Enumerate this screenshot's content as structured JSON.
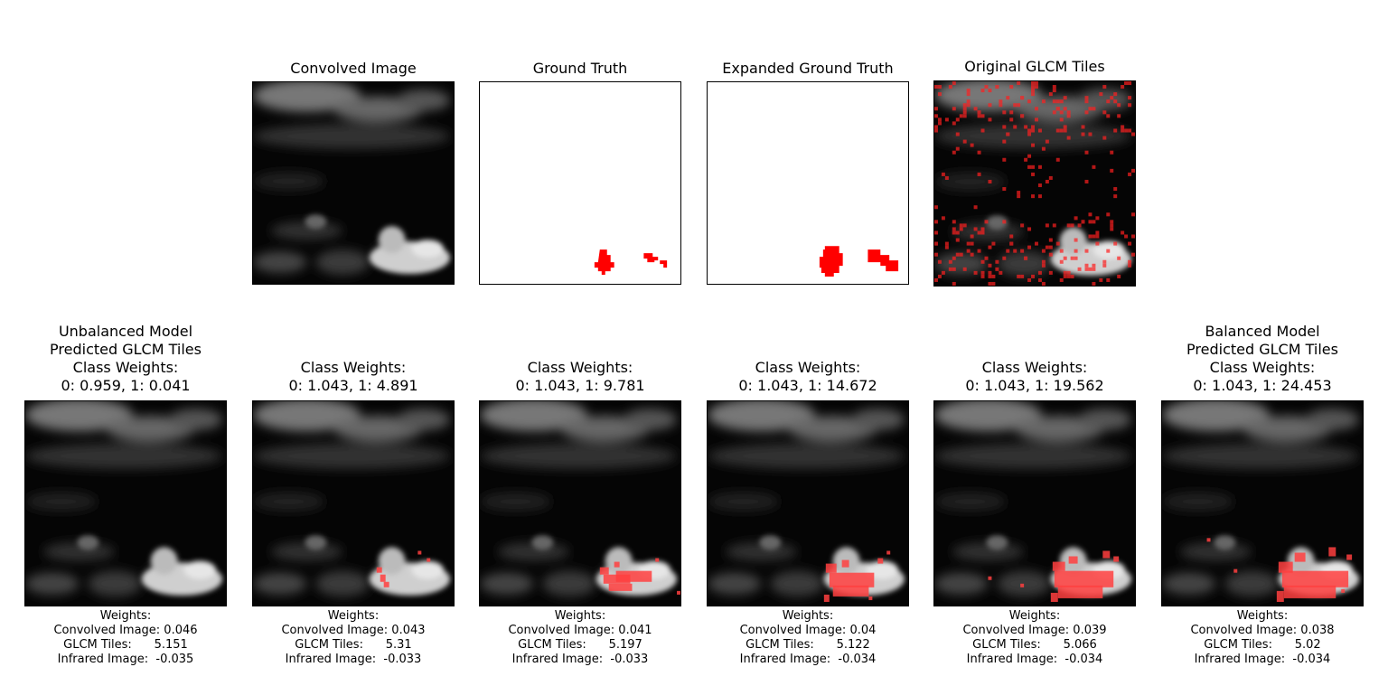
{
  "top_row": [
    {
      "id": "convolved",
      "title": "Convolved Image"
    },
    {
      "id": "gt",
      "title": "Ground Truth"
    },
    {
      "id": "egt",
      "title": "Expanded Ground Truth"
    },
    {
      "id": "glcm",
      "title": "Original GLCM Tiles"
    }
  ],
  "bottom_row": [
    {
      "title": "Unbalanced Model\nPredicted GLCM Tiles\nClass Weights:\n0: 0.959, 1: 0.041",
      "caption": "Weights:\nConvolved Image: 0.046\nGLCM Tiles:      5.151\nInfrared Image:  -0.035"
    },
    {
      "title": "Class Weights:\n0: 1.043, 1: 4.891",
      "caption": "Weights:\nConvolved Image: 0.043\nGLCM Tiles:      5.31\nInfrared Image:  -0.033"
    },
    {
      "title": "Class Weights:\n0: 1.043, 1: 9.781",
      "caption": "Weights:\nConvolved Image: 0.041\nGLCM Tiles:      5.197\nInfrared Image:  -0.033"
    },
    {
      "title": "Class Weights:\n0: 1.043, 1: 14.672",
      "caption": "Weights:\nConvolved Image: 0.04\nGLCM Tiles:      5.122\nInfrared Image:  -0.034"
    },
    {
      "title": "Class Weights:\n0: 1.043, 1: 19.562",
      "caption": "Weights:\nConvolved Image: 0.039\nGLCM Tiles:      5.066\nInfrared Image:  -0.034"
    },
    {
      "title": "Balanced Model\nPredicted GLCM Tiles\nClass Weights:\n0: 1.043, 1: 24.453",
      "caption": "Weights:\nConvolved Image: 0.038\nGLCM Tiles:      5.02\nInfrared Image:  -0.034"
    }
  ],
  "colors": {
    "mask": "#ff0000",
    "overlay": "#ff4040",
    "background": "#000000"
  }
}
